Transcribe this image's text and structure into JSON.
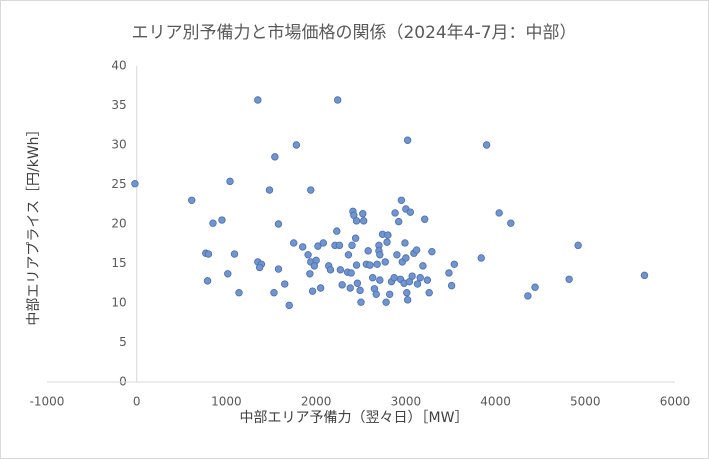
{
  "chart_data": {
    "type": "scatter",
    "title": "エリア別予備力と市場価格の関係（2024年4-7月：中部）",
    "xlabel": "中部エリア予備力（翌々日）［MW］",
    "ylabel": "中部エリアプライス［円/kWh］",
    "xlim": [
      -1000,
      6000
    ],
    "xticks": [
      -1000,
      0,
      1000,
      2000,
      3000,
      4000,
      5000,
      6000
    ],
    "ylim": [
      0,
      40
    ],
    "yticks": [
      0,
      5,
      10,
      15,
      20,
      25,
      30,
      35,
      40
    ],
    "grid": false,
    "color": "#7094d0",
    "series": [
      {
        "name": "中部",
        "color": "#7094d0",
        "x": [
          -20,
          613,
          850,
          950,
          1040,
          770,
          800,
          790,
          1015,
          1090,
          1140,
          1350,
          1350,
          1390,
          1370,
          1480,
          1540,
          1580,
          1580,
          1530,
          1650,
          1700,
          1780,
          1750,
          1850,
          1910,
          1940,
          1940,
          1930,
          1960,
          2000,
          1980,
          2020,
          2050,
          2080,
          2140,
          2160,
          2230,
          2240,
          2210,
          2260,
          2270,
          2290,
          2350,
          2360,
          2380,
          2390,
          2400,
          2410,
          2420,
          2450,
          2440,
          2450,
          2460,
          2490,
          2500,
          2520,
          2530,
          2560,
          2580,
          2600,
          2630,
          2650,
          2670,
          2680,
          2700,
          2700,
          2710,
          2710,
          2740,
          2770,
          2790,
          2780,
          2800,
          2820,
          2840,
          2870,
          2880,
          2900,
          2920,
          2940,
          2950,
          2960,
          2980,
          2990,
          3000,
          3000,
          3010,
          3020,
          3020,
          3040,
          3050,
          3070,
          3090,
          3120,
          3130,
          3160,
          3190,
          3210,
          3240,
          3260,
          3290,
          3480,
          3510,
          3540,
          3840,
          3900,
          4040,
          4170,
          4360,
          4440,
          4820,
          4920,
          5660
        ],
        "values": [
          25.1,
          23,
          20.1,
          20.5,
          25.4,
          16.3,
          16.2,
          12.8,
          13.7,
          16.2,
          11.3,
          35.7,
          15.2,
          14.9,
          14.5,
          24.3,
          28.5,
          20,
          14.3,
          11.3,
          12.4,
          9.7,
          30,
          17.6,
          17.1,
          16.1,
          24.3,
          15.2,
          13.7,
          11.5,
          15.4,
          14.7,
          17.2,
          11.9,
          17.6,
          14.7,
          14.2,
          19.1,
          35.7,
          17.3,
          17.3,
          14.2,
          12.3,
          13.9,
          16.1,
          11.9,
          13.8,
          17.3,
          21.6,
          21.1,
          20.4,
          18.2,
          14.8,
          12.5,
          11.6,
          10.1,
          21.3,
          20.4,
          14.9,
          16.6,
          14.8,
          13.2,
          11.8,
          11.1,
          14.9,
          17.3,
          16.6,
          16.1,
          12.9,
          18.7,
          15.2,
          17.7,
          10.1,
          18.6,
          11.1,
          12.7,
          13.2,
          21.4,
          16.1,
          20.3,
          13,
          23,
          15.2,
          12.5,
          17.6,
          15.7,
          21.9,
          11.3,
          30.6,
          10.4,
          12.7,
          21.5,
          13.4,
          16.3,
          16.7,
          12.4,
          13.2,
          14.7,
          20.6,
          12.9,
          11.3,
          16.5,
          13.8,
          12.2,
          14.9,
          15.7,
          30,
          21.4,
          20.1,
          10.9,
          12,
          13,
          17.3,
          13.5
        ]
      }
    ]
  }
}
